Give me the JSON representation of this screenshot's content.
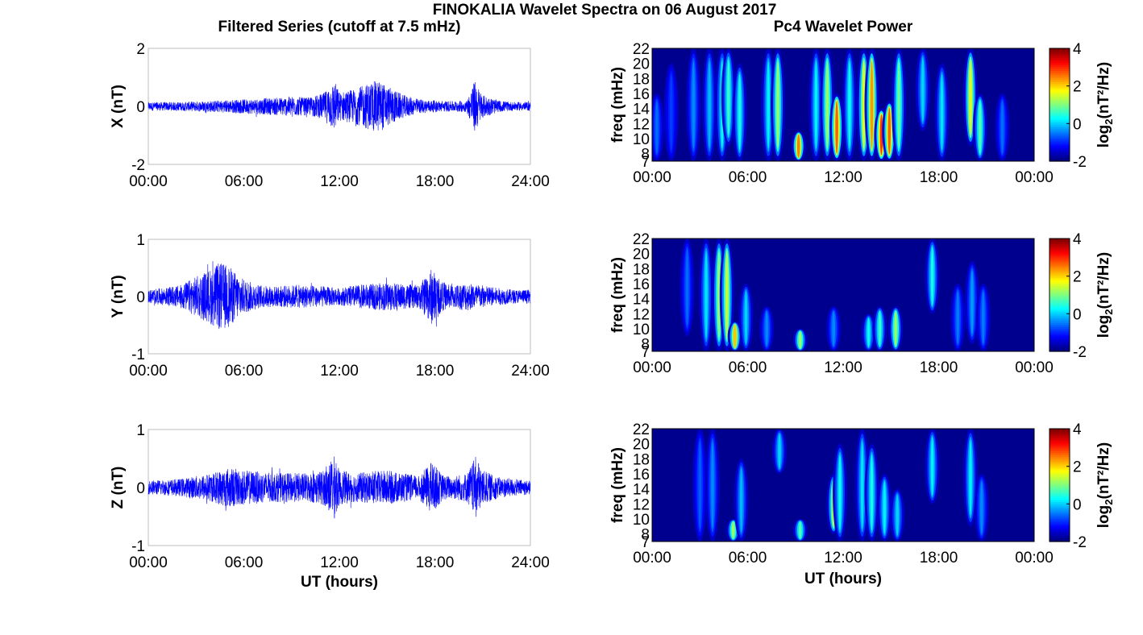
{
  "title": "FINOKALIA Wavelet Spectra on 06 August 2017",
  "left_column_title": "Filtered Series (cutoff at 7.5 mHz)",
  "right_column_title": "Pc4 Wavelet Power",
  "colors": {
    "trace": "#0000ff",
    "spectrum_background": "#00008f"
  },
  "chart_data": [
    {
      "type": "line",
      "ylabel": "X (nT)",
      "ylim": [
        -2,
        2
      ],
      "yticks": [
        "2",
        "0",
        "-2"
      ],
      "xticks": [
        "00:00",
        "06:00",
        "12:00",
        "18:00",
        "24:00"
      ],
      "xlabel": "",
      "xlim_hours": [
        0,
        24
      ],
      "series_color": "#0000ff",
      "envelope": {
        "x_hours": [
          0,
          2,
          4,
          6,
          8,
          9,
          10,
          11,
          11.7,
          12,
          13,
          14,
          14.5,
          15,
          16,
          17,
          18,
          19,
          20,
          20.5,
          21,
          22,
          23,
          24
        ],
        "amplitude_nT": [
          0.15,
          0.15,
          0.2,
          0.25,
          0.3,
          0.35,
          0.3,
          0.45,
          0.9,
          0.5,
          0.6,
          0.85,
          0.9,
          0.7,
          0.4,
          0.25,
          0.2,
          0.18,
          0.2,
          0.9,
          0.4,
          0.2,
          0.15,
          0.15
        ]
      }
    },
    {
      "type": "line",
      "ylabel": "Y (nT)",
      "ylim": [
        -1,
        1
      ],
      "yticks": [
        "1",
        "0",
        "-1"
      ],
      "xticks": [
        "00:00",
        "06:00",
        "12:00",
        "18:00",
        "24:00"
      ],
      "xlabel": "",
      "xlim_hours": [
        0,
        24
      ],
      "series_color": "#0000ff",
      "envelope": {
        "x_hours": [
          0,
          1,
          2,
          3,
          4,
          4.5,
          5,
          6,
          7,
          8,
          9,
          10,
          11,
          12,
          13,
          14,
          15,
          16,
          17,
          17.8,
          18.5,
          19,
          20,
          21,
          22,
          23,
          24
        ],
        "amplitude_nT": [
          0.12,
          0.15,
          0.2,
          0.35,
          0.5,
          0.6,
          0.55,
          0.3,
          0.2,
          0.18,
          0.2,
          0.2,
          0.18,
          0.15,
          0.2,
          0.22,
          0.25,
          0.22,
          0.2,
          0.5,
          0.25,
          0.2,
          0.25,
          0.2,
          0.15,
          0.12,
          0.12
        ]
      }
    },
    {
      "type": "line",
      "ylabel": "Z (nT)",
      "ylim": [
        -1,
        1
      ],
      "yticks": [
        "1",
        "0",
        "-1"
      ],
      "xticks": [
        "00:00",
        "06:00",
        "12:00",
        "18:00",
        "24:00"
      ],
      "xlabel": "UT (hours)",
      "xlim_hours": [
        0,
        24
      ],
      "series_color": "#0000ff",
      "envelope": {
        "x_hours": [
          0,
          2,
          4,
          5,
          6,
          8,
          10,
          11,
          11.7,
          12,
          13,
          14,
          15,
          16,
          17,
          17.8,
          18.5,
          19,
          20,
          20.6,
          21,
          22,
          23,
          24
        ],
        "amplitude_nT": [
          0.12,
          0.15,
          0.25,
          0.35,
          0.3,
          0.25,
          0.25,
          0.3,
          0.55,
          0.3,
          0.25,
          0.28,
          0.3,
          0.25,
          0.2,
          0.45,
          0.22,
          0.2,
          0.25,
          0.55,
          0.3,
          0.18,
          0.15,
          0.12
        ]
      }
    },
    {
      "type": "heatmap",
      "ylabel": "freq (mHz)",
      "ylim": [
        7,
        22
      ],
      "yticks": [
        "22",
        "20",
        "18",
        "16",
        "14",
        "12",
        "10",
        "8",
        "7"
      ],
      "xticks": [
        "00:00",
        "06:00",
        "12:00",
        "18:00",
        "00:00"
      ],
      "xlabel": "",
      "xlim_hours": [
        0,
        24
      ],
      "colorbar": {
        "label": "log2(nT²/Hz)",
        "ticks": [
          "4",
          "2",
          "0",
          "-2"
        ],
        "range": [
          -2,
          4
        ],
        "colormap": "jet"
      },
      "bursts": [
        {
          "t_hours": 0.3,
          "power": -0.5,
          "f_min": 7,
          "f_max": 16
        },
        {
          "t_hours": 1.2,
          "power": -0.8,
          "f_min": 7,
          "f_max": 20
        },
        {
          "t_hours": 2.6,
          "power": -0.3,
          "f_min": 7,
          "f_max": 22
        },
        {
          "t_hours": 3.6,
          "power": 0,
          "f_min": 7,
          "f_max": 22
        },
        {
          "t_hours": 4.4,
          "power": 0.5,
          "f_min": 7,
          "f_max": 22
        },
        {
          "t_hours": 4.8,
          "power": 0.8,
          "f_min": 9,
          "f_max": 22
        },
        {
          "t_hours": 5.5,
          "power": 0.6,
          "f_min": 7,
          "f_max": 20
        },
        {
          "t_hours": 7.3,
          "power": 0.4,
          "f_min": 7,
          "f_max": 22
        },
        {
          "t_hours": 7.9,
          "power": 1.5,
          "f_min": 7,
          "f_max": 22
        },
        {
          "t_hours": 9.2,
          "power": 3.0,
          "f_min": 7,
          "f_max": 11
        },
        {
          "t_hours": 10.3,
          "power": 0.4,
          "f_min": 7,
          "f_max": 22
        },
        {
          "t_hours": 11.0,
          "power": 1.5,
          "f_min": 7,
          "f_max": 22
        },
        {
          "t_hours": 11.6,
          "power": 3.2,
          "f_min": 7,
          "f_max": 16
        },
        {
          "t_hours": 12.4,
          "power": 0.5,
          "f_min": 7,
          "f_max": 22
        },
        {
          "t_hours": 13.3,
          "power": 2.0,
          "f_min": 7,
          "f_max": 22
        },
        {
          "t_hours": 13.8,
          "power": 2.8,
          "f_min": 7,
          "f_max": 22
        },
        {
          "t_hours": 14.4,
          "power": 3.5,
          "f_min": 7,
          "f_max": 14
        },
        {
          "t_hours": 14.9,
          "power": 3.2,
          "f_min": 7,
          "f_max": 15
        },
        {
          "t_hours": 15.5,
          "power": 1.2,
          "f_min": 7,
          "f_max": 22
        },
        {
          "t_hours": 17.0,
          "power": 0.2,
          "f_min": 11,
          "f_max": 22
        },
        {
          "t_hours": 18.2,
          "power": 0.3,
          "f_min": 7,
          "f_max": 20
        },
        {
          "t_hours": 20.0,
          "power": 2.0,
          "f_min": 9,
          "f_max": 22
        },
        {
          "t_hours": 20.6,
          "power": 1.0,
          "f_min": 7,
          "f_max": 16
        },
        {
          "t_hours": 22.0,
          "power": -0.5,
          "f_min": 7,
          "f_max": 16
        }
      ]
    },
    {
      "type": "heatmap",
      "ylabel": "freq (mHz)",
      "ylim": [
        7,
        22
      ],
      "yticks": [
        "22",
        "20",
        "18",
        "16",
        "14",
        "12",
        "10",
        "8",
        "7"
      ],
      "xticks": [
        "00:00",
        "06:00",
        "12:00",
        "18:00",
        "00:00"
      ],
      "xlabel": "",
      "xlim_hours": [
        0,
        24
      ],
      "colorbar": {
        "label": "log2(nT²/Hz)",
        "ticks": [
          "4",
          "2",
          "0",
          "-2"
        ],
        "range": [
          -2,
          4
        ],
        "colormap": "jet"
      },
      "bursts": [
        {
          "t_hours": 2.2,
          "power": -0.5,
          "f_min": 9,
          "f_max": 22
        },
        {
          "t_hours": 3.4,
          "power": 0.3,
          "f_min": 7,
          "f_max": 22
        },
        {
          "t_hours": 4.2,
          "power": 1.5,
          "f_min": 7,
          "f_max": 22
        },
        {
          "t_hours": 4.7,
          "power": 1.8,
          "f_min": 7,
          "f_max": 22
        },
        {
          "t_hours": 5.2,
          "power": 2.5,
          "f_min": 7,
          "f_max": 11
        },
        {
          "t_hours": 5.9,
          "power": 0.2,
          "f_min": 7,
          "f_max": 16
        },
        {
          "t_hours": 7.2,
          "power": -0.3,
          "f_min": 7,
          "f_max": 13
        },
        {
          "t_hours": 9.3,
          "power": 1.5,
          "f_min": 7,
          "f_max": 10
        },
        {
          "t_hours": 11.4,
          "power": -0.3,
          "f_min": 7,
          "f_max": 13
        },
        {
          "t_hours": 13.6,
          "power": 0.5,
          "f_min": 7,
          "f_max": 12
        },
        {
          "t_hours": 14.3,
          "power": 0.8,
          "f_min": 7,
          "f_max": 13
        },
        {
          "t_hours": 15.3,
          "power": 1.5,
          "f_min": 7,
          "f_max": 13
        },
        {
          "t_hours": 17.6,
          "power": 0.6,
          "f_min": 12,
          "f_max": 22
        },
        {
          "t_hours": 19.2,
          "power": -0.4,
          "f_min": 7,
          "f_max": 16
        },
        {
          "t_hours": 20.1,
          "power": -0.2,
          "f_min": 8,
          "f_max": 19
        },
        {
          "t_hours": 20.8,
          "power": -0.4,
          "f_min": 7,
          "f_max": 16
        }
      ]
    },
    {
      "type": "heatmap",
      "ylabel": "freq (mHz)",
      "ylim": [
        7,
        22
      ],
      "yticks": [
        "22",
        "20",
        "18",
        "16",
        "14",
        "12",
        "10",
        "8",
        "7"
      ],
      "xticks": [
        "00:00",
        "06:00",
        "12:00",
        "18:00",
        "00:00"
      ],
      "xlabel": "UT (hours)",
      "xlim_hours": [
        0,
        24
      ],
      "colorbar": {
        "label": "log2(nT²/Hz)",
        "ticks": [
          "4",
          "2",
          "0",
          "-2"
        ],
        "range": [
          -2,
          4
        ],
        "colormap": "jet"
      },
      "bursts": [
        {
          "t_hours": 3.0,
          "power": -0.6,
          "f_min": 7,
          "f_max": 22
        },
        {
          "t_hours": 3.8,
          "power": -0.3,
          "f_min": 7,
          "f_max": 22
        },
        {
          "t_hours": 5.1,
          "power": 1.5,
          "f_min": 7,
          "f_max": 10
        },
        {
          "t_hours": 5.6,
          "power": 0.0,
          "f_min": 7,
          "f_max": 18
        },
        {
          "t_hours": 8.0,
          "power": 0.2,
          "f_min": 16,
          "f_max": 22
        },
        {
          "t_hours": 9.3,
          "power": 1.0,
          "f_min": 7,
          "f_max": 10
        },
        {
          "t_hours": 11.4,
          "power": 1.8,
          "f_min": 8,
          "f_max": 16
        },
        {
          "t_hours": 11.8,
          "power": 0.5,
          "f_min": 7,
          "f_max": 20
        },
        {
          "t_hours": 13.2,
          "power": 0.3,
          "f_min": 7,
          "f_max": 22
        },
        {
          "t_hours": 13.8,
          "power": 0.6,
          "f_min": 7,
          "f_max": 20
        },
        {
          "t_hours": 14.6,
          "power": 0.4,
          "f_min": 7,
          "f_max": 16
        },
        {
          "t_hours": 15.4,
          "power": 0.2,
          "f_min": 7,
          "f_max": 14
        },
        {
          "t_hours": 17.6,
          "power": 0.4,
          "f_min": 12,
          "f_max": 22
        },
        {
          "t_hours": 20.0,
          "power": 0.4,
          "f_min": 9,
          "f_max": 22
        },
        {
          "t_hours": 20.7,
          "power": -0.3,
          "f_min": 7,
          "f_max": 16
        }
      ]
    }
  ]
}
